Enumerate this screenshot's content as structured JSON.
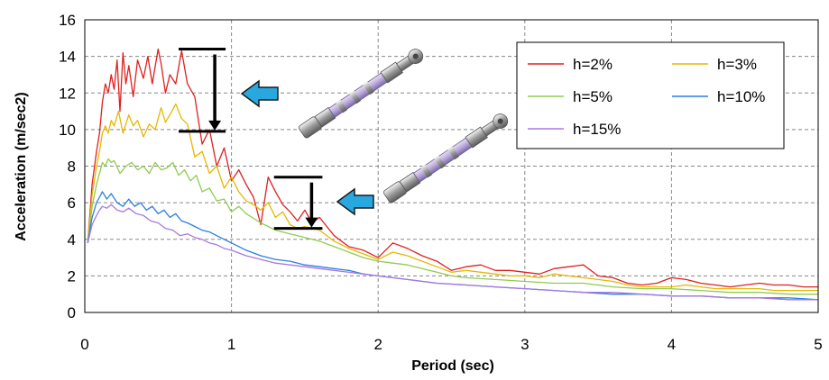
{
  "chart_data": {
    "type": "line",
    "title": "",
    "xlabel": "Period (sec)",
    "ylabel": "Acceleration (m/sec2)",
    "xlim": [
      0,
      5
    ],
    "ylim": [
      0,
      16
    ],
    "x_ticks": [
      "0",
      "1",
      "2",
      "3",
      "4",
      "5"
    ],
    "y_ticks": [
      "0",
      "2",
      "4",
      "6",
      "8",
      "10",
      "12",
      "14",
      "16"
    ],
    "grid": "dashed",
    "legend_position": "top-right",
    "series": [
      {
        "name": "h=2%",
        "color": "#e02020",
        "x": [
          0.02,
          0.05,
          0.08,
          0.1,
          0.12,
          0.14,
          0.16,
          0.18,
          0.2,
          0.22,
          0.24,
          0.26,
          0.28,
          0.3,
          0.33,
          0.36,
          0.4,
          0.43,
          0.46,
          0.5,
          0.52,
          0.55,
          0.58,
          0.62,
          0.66,
          0.7,
          0.75,
          0.8,
          0.85,
          0.9,
          0.95,
          1.0,
          1.05,
          1.1,
          1.15,
          1.2,
          1.25,
          1.3,
          1.35,
          1.4,
          1.45,
          1.5,
          1.55,
          1.6,
          1.7,
          1.8,
          1.9,
          2.0,
          2.1,
          2.2,
          2.3,
          2.4,
          2.5,
          2.6,
          2.7,
          2.8,
          2.9,
          3.0,
          3.1,
          3.2,
          3.3,
          3.4,
          3.5,
          3.6,
          3.7,
          3.8,
          3.9,
          4.0,
          4.1,
          4.2,
          4.3,
          4.4,
          4.5,
          4.6,
          4.7,
          4.8,
          4.9,
          5.0
        ],
        "y": [
          3.8,
          7.0,
          8.8,
          9.8,
          11.5,
          12.5,
          12.0,
          13.0,
          12.2,
          13.8,
          11.0,
          14.2,
          12.5,
          13.5,
          11.8,
          13.8,
          12.8,
          14.0,
          12.5,
          14.4,
          13.6,
          12.0,
          13.0,
          12.5,
          14.3,
          12.5,
          11.8,
          9.2,
          10.0,
          8.0,
          9.0,
          7.2,
          7.8,
          7.0,
          6.3,
          4.8,
          7.4,
          6.6,
          5.9,
          5.5,
          5.0,
          5.6,
          4.9,
          5.2,
          4.2,
          3.6,
          3.4,
          3.0,
          3.8,
          3.5,
          3.1,
          2.8,
          2.3,
          2.5,
          2.6,
          2.3,
          2.3,
          2.2,
          2.1,
          2.4,
          2.5,
          2.6,
          2.0,
          1.9,
          1.6,
          1.5,
          1.6,
          1.9,
          1.8,
          1.6,
          1.5,
          1.4,
          1.5,
          1.6,
          1.5,
          1.5,
          1.4,
          1.4
        ]
      },
      {
        "name": "h=3%",
        "color": "#e6b800",
        "x": [
          0.02,
          0.05,
          0.08,
          0.1,
          0.12,
          0.14,
          0.16,
          0.18,
          0.2,
          0.23,
          0.26,
          0.3,
          0.33,
          0.36,
          0.4,
          0.44,
          0.48,
          0.52,
          0.55,
          0.58,
          0.62,
          0.66,
          0.7,
          0.75,
          0.8,
          0.85,
          0.9,
          0.95,
          1.0,
          1.05,
          1.1,
          1.15,
          1.2,
          1.25,
          1.3,
          1.35,
          1.4,
          1.45,
          1.5,
          1.55,
          1.6,
          1.7,
          1.8,
          1.9,
          2.0,
          2.1,
          2.2,
          2.3,
          2.4,
          2.5,
          2.6,
          2.7,
          2.8,
          2.9,
          3.0,
          3.1,
          3.2,
          3.3,
          3.4,
          3.5,
          3.6,
          3.7,
          3.8,
          3.9,
          4.0,
          4.1,
          4.2,
          4.3,
          4.4,
          4.5,
          4.6,
          4.7,
          4.8,
          4.9,
          5.0
        ],
        "y": [
          3.8,
          6.4,
          8.0,
          8.8,
          9.8,
          10.2,
          9.8,
          10.5,
          10.2,
          11.0,
          9.8,
          10.8,
          10.2,
          10.5,
          9.6,
          10.3,
          10.0,
          11.2,
          10.4,
          10.8,
          11.4,
          10.6,
          10.3,
          8.5,
          8.8,
          7.6,
          8.0,
          6.8,
          7.4,
          6.6,
          6.1,
          5.9,
          5.6,
          6.0,
          5.2,
          5.5,
          4.8,
          4.6,
          4.7,
          4.6,
          4.5,
          3.9,
          3.5,
          3.2,
          2.9,
          3.3,
          3.1,
          2.8,
          2.5,
          2.2,
          2.3,
          2.2,
          2.1,
          2.0,
          2.0,
          1.9,
          2.1,
          2.0,
          1.9,
          1.8,
          1.7,
          1.5,
          1.4,
          1.4,
          1.4,
          1.5,
          1.4,
          1.3,
          1.3,
          1.3,
          1.3,
          1.2,
          1.2,
          1.2,
          1.2
        ]
      },
      {
        "name": "h=5%",
        "color": "#8fcc50",
        "x": [
          0.02,
          0.05,
          0.08,
          0.1,
          0.12,
          0.14,
          0.16,
          0.18,
          0.2,
          0.24,
          0.28,
          0.32,
          0.36,
          0.4,
          0.44,
          0.48,
          0.52,
          0.56,
          0.6,
          0.64,
          0.68,
          0.72,
          0.76,
          0.8,
          0.85,
          0.9,
          0.95,
          1.0,
          1.05,
          1.1,
          1.2,
          1.3,
          1.4,
          1.5,
          1.6,
          1.7,
          1.8,
          1.9,
          2.0,
          2.1,
          2.2,
          2.3,
          2.4,
          2.5,
          2.6,
          2.8,
          3.0,
          3.2,
          3.4,
          3.6,
          3.8,
          4.0,
          4.2,
          4.4,
          4.6,
          4.8,
          5.0
        ],
        "y": [
          3.8,
          5.8,
          7.0,
          7.6,
          8.2,
          8.0,
          8.4,
          8.2,
          8.3,
          7.6,
          8.0,
          8.2,
          7.8,
          8.0,
          7.6,
          8.2,
          7.8,
          7.9,
          8.2,
          7.5,
          7.8,
          7.2,
          7.5,
          6.6,
          6.8,
          6.1,
          6.2,
          5.5,
          5.8,
          5.4,
          4.9,
          4.5,
          4.3,
          4.1,
          3.9,
          3.6,
          3.3,
          3.0,
          2.8,
          2.7,
          2.6,
          2.4,
          2.2,
          2.0,
          1.9,
          1.8,
          1.7,
          1.6,
          1.6,
          1.4,
          1.3,
          1.3,
          1.2,
          1.1,
          1.1,
          1.0,
          1.0
        ]
      },
      {
        "name": "h=10%",
        "color": "#2a7fe0",
        "x": [
          0.02,
          0.05,
          0.08,
          0.1,
          0.12,
          0.15,
          0.18,
          0.22,
          0.26,
          0.3,
          0.34,
          0.38,
          0.42,
          0.46,
          0.5,
          0.54,
          0.58,
          0.62,
          0.66,
          0.7,
          0.75,
          0.8,
          0.85,
          0.9,
          0.95,
          1.0,
          1.1,
          1.2,
          1.3,
          1.4,
          1.5,
          1.6,
          1.7,
          1.8,
          1.9,
          2.0,
          2.2,
          2.4,
          2.6,
          2.8,
          3.0,
          3.2,
          3.4,
          3.6,
          3.8,
          4.0,
          4.2,
          4.4,
          4.6,
          4.8,
          5.0
        ],
        "y": [
          3.8,
          5.2,
          6.0,
          6.3,
          6.6,
          6.2,
          6.5,
          6.0,
          5.8,
          6.2,
          5.8,
          6.0,
          5.6,
          5.8,
          5.4,
          5.6,
          5.2,
          5.4,
          5.0,
          4.9,
          4.7,
          4.5,
          4.4,
          4.2,
          4.0,
          3.8,
          3.4,
          3.1,
          2.9,
          2.8,
          2.6,
          2.5,
          2.4,
          2.3,
          2.1,
          2.0,
          1.8,
          1.6,
          1.5,
          1.4,
          1.3,
          1.2,
          1.1,
          1.0,
          1.0,
          0.9,
          0.9,
          0.8,
          0.8,
          0.8,
          0.7
        ]
      },
      {
        "name": "h=15%",
        "color": "#a878e0",
        "x": [
          0.02,
          0.05,
          0.08,
          0.1,
          0.12,
          0.15,
          0.18,
          0.22,
          0.26,
          0.3,
          0.35,
          0.4,
          0.45,
          0.5,
          0.55,
          0.6,
          0.65,
          0.7,
          0.75,
          0.8,
          0.85,
          0.9,
          0.95,
          1.0,
          1.1,
          1.2,
          1.3,
          1.4,
          1.5,
          1.6,
          1.7,
          1.8,
          1.9,
          2.0,
          2.2,
          2.4,
          2.6,
          2.8,
          3.0,
          3.2,
          3.4,
          3.6,
          3.8,
          4.0,
          4.2,
          4.4,
          4.6,
          4.8,
          5.0
        ],
        "y": [
          3.8,
          4.8,
          5.3,
          5.6,
          5.8,
          5.7,
          5.9,
          5.6,
          5.5,
          5.7,
          5.4,
          5.3,
          5.0,
          4.9,
          4.6,
          4.5,
          4.2,
          4.3,
          4.1,
          4.0,
          3.8,
          3.7,
          3.5,
          3.4,
          3.1,
          2.9,
          2.7,
          2.6,
          2.5,
          2.4,
          2.3,
          2.2,
          2.1,
          2.0,
          1.8,
          1.6,
          1.5,
          1.4,
          1.3,
          1.2,
          1.1,
          1.1,
          1.0,
          0.9,
          0.9,
          0.8,
          0.8,
          0.7,
          0.7
        ]
      }
    ]
  },
  "annotations": {
    "arrow_color": "#29a8e0",
    "marker_color": "#000000",
    "range_upper": {
      "x_start": 0.64,
      "x_end": 0.96,
      "y_top": 14.4,
      "y_bottom": 9.9
    },
    "range_lower": {
      "x_start": 1.29,
      "x_end": 1.62,
      "y_top": 7.4,
      "y_bottom": 4.6
    }
  },
  "icons": [
    "damper-device-icon",
    "damper-device-icon"
  ]
}
